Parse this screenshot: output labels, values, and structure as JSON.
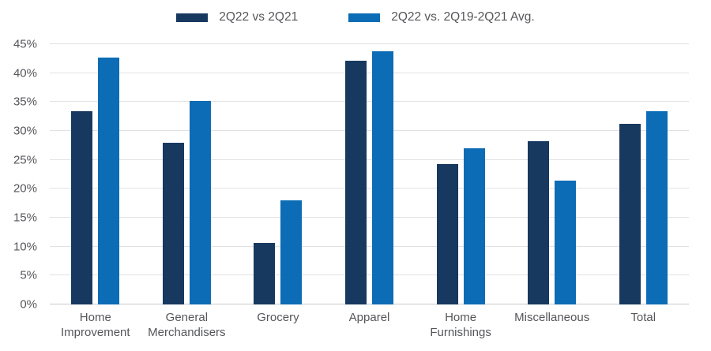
{
  "chart_data": {
    "type": "bar",
    "title": "",
    "categories": [
      "Home Improvement",
      "General Merchandisers",
      "Grocery",
      "Apparel",
      "Home Furnishings",
      "Miscellaneous",
      "Total"
    ],
    "series": [
      {
        "name": "2Q22 vs 2Q21",
        "color": "#17395f",
        "values": [
          33.4,
          27.9,
          10.7,
          42.2,
          24.3,
          28.2,
          31.2
        ]
      },
      {
        "name": "2Q22 vs. 2Q19-2Q21 Avg.",
        "color": "#0c6cb5",
        "values": [
          42.7,
          35.2,
          18.0,
          43.8,
          27.0,
          21.4,
          33.4
        ]
      }
    ],
    "ylim": [
      0,
      45
    ],
    "y_step": 5,
    "y_suffix": "%",
    "grid": true,
    "legend_position": "top"
  },
  "colors": {
    "grid": "#e2e2e2",
    "baseline": "#c9c9c9",
    "text": "#55565a"
  }
}
